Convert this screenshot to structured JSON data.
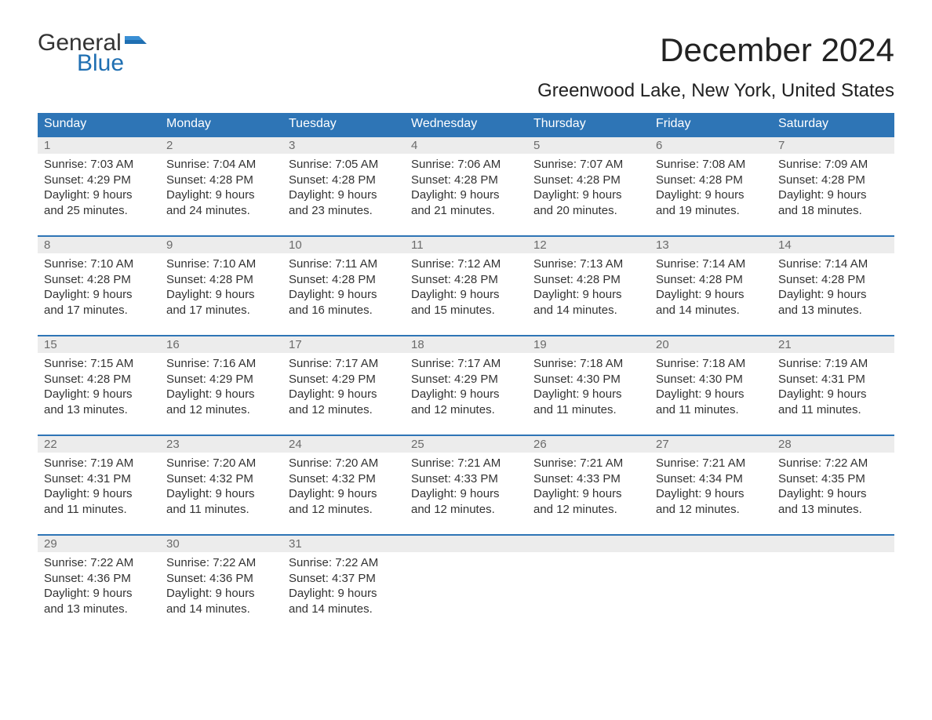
{
  "logo": {
    "word1": "General",
    "word2": "Blue"
  },
  "title": "December 2024",
  "subtitle": "Greenwood Lake, New York, United States",
  "colors": {
    "header_bg": "#2e75b6",
    "header_text": "#ffffff",
    "week_border": "#2e75b6",
    "daynum_bg": "#ececec",
    "daynum_text": "#6b6b6b",
    "body_text": "#333333",
    "logo_blue": "#1f6fb2",
    "background": "#ffffff"
  },
  "typography": {
    "title_size": 42,
    "subtitle_size": 24,
    "dow_size": 16,
    "cell_size": 15
  },
  "days_of_week": [
    "Sunday",
    "Monday",
    "Tuesday",
    "Wednesday",
    "Thursday",
    "Friday",
    "Saturday"
  ],
  "weeks": [
    [
      {
        "num": "1",
        "sunrise": "Sunrise: 7:03 AM",
        "sunset": "Sunset: 4:29 PM",
        "daylight": "Daylight: 9 hours and 25 minutes."
      },
      {
        "num": "2",
        "sunrise": "Sunrise: 7:04 AM",
        "sunset": "Sunset: 4:28 PM",
        "daylight": "Daylight: 9 hours and 24 minutes."
      },
      {
        "num": "3",
        "sunrise": "Sunrise: 7:05 AM",
        "sunset": "Sunset: 4:28 PM",
        "daylight": "Daylight: 9 hours and 23 minutes."
      },
      {
        "num": "4",
        "sunrise": "Sunrise: 7:06 AM",
        "sunset": "Sunset: 4:28 PM",
        "daylight": "Daylight: 9 hours and 21 minutes."
      },
      {
        "num": "5",
        "sunrise": "Sunrise: 7:07 AM",
        "sunset": "Sunset: 4:28 PM",
        "daylight": "Daylight: 9 hours and 20 minutes."
      },
      {
        "num": "6",
        "sunrise": "Sunrise: 7:08 AM",
        "sunset": "Sunset: 4:28 PM",
        "daylight": "Daylight: 9 hours and 19 minutes."
      },
      {
        "num": "7",
        "sunrise": "Sunrise: 7:09 AM",
        "sunset": "Sunset: 4:28 PM",
        "daylight": "Daylight: 9 hours and 18 minutes."
      }
    ],
    [
      {
        "num": "8",
        "sunrise": "Sunrise: 7:10 AM",
        "sunset": "Sunset: 4:28 PM",
        "daylight": "Daylight: 9 hours and 17 minutes."
      },
      {
        "num": "9",
        "sunrise": "Sunrise: 7:10 AM",
        "sunset": "Sunset: 4:28 PM",
        "daylight": "Daylight: 9 hours and 17 minutes."
      },
      {
        "num": "10",
        "sunrise": "Sunrise: 7:11 AM",
        "sunset": "Sunset: 4:28 PM",
        "daylight": "Daylight: 9 hours and 16 minutes."
      },
      {
        "num": "11",
        "sunrise": "Sunrise: 7:12 AM",
        "sunset": "Sunset: 4:28 PM",
        "daylight": "Daylight: 9 hours and 15 minutes."
      },
      {
        "num": "12",
        "sunrise": "Sunrise: 7:13 AM",
        "sunset": "Sunset: 4:28 PM",
        "daylight": "Daylight: 9 hours and 14 minutes."
      },
      {
        "num": "13",
        "sunrise": "Sunrise: 7:14 AM",
        "sunset": "Sunset: 4:28 PM",
        "daylight": "Daylight: 9 hours and 14 minutes."
      },
      {
        "num": "14",
        "sunrise": "Sunrise: 7:14 AM",
        "sunset": "Sunset: 4:28 PM",
        "daylight": "Daylight: 9 hours and 13 minutes."
      }
    ],
    [
      {
        "num": "15",
        "sunrise": "Sunrise: 7:15 AM",
        "sunset": "Sunset: 4:28 PM",
        "daylight": "Daylight: 9 hours and 13 minutes."
      },
      {
        "num": "16",
        "sunrise": "Sunrise: 7:16 AM",
        "sunset": "Sunset: 4:29 PM",
        "daylight": "Daylight: 9 hours and 12 minutes."
      },
      {
        "num": "17",
        "sunrise": "Sunrise: 7:17 AM",
        "sunset": "Sunset: 4:29 PM",
        "daylight": "Daylight: 9 hours and 12 minutes."
      },
      {
        "num": "18",
        "sunrise": "Sunrise: 7:17 AM",
        "sunset": "Sunset: 4:29 PM",
        "daylight": "Daylight: 9 hours and 12 minutes."
      },
      {
        "num": "19",
        "sunrise": "Sunrise: 7:18 AM",
        "sunset": "Sunset: 4:30 PM",
        "daylight": "Daylight: 9 hours and 11 minutes."
      },
      {
        "num": "20",
        "sunrise": "Sunrise: 7:18 AM",
        "sunset": "Sunset: 4:30 PM",
        "daylight": "Daylight: 9 hours and 11 minutes."
      },
      {
        "num": "21",
        "sunrise": "Sunrise: 7:19 AM",
        "sunset": "Sunset: 4:31 PM",
        "daylight": "Daylight: 9 hours and 11 minutes."
      }
    ],
    [
      {
        "num": "22",
        "sunrise": "Sunrise: 7:19 AM",
        "sunset": "Sunset: 4:31 PM",
        "daylight": "Daylight: 9 hours and 11 minutes."
      },
      {
        "num": "23",
        "sunrise": "Sunrise: 7:20 AM",
        "sunset": "Sunset: 4:32 PM",
        "daylight": "Daylight: 9 hours and 11 minutes."
      },
      {
        "num": "24",
        "sunrise": "Sunrise: 7:20 AM",
        "sunset": "Sunset: 4:32 PM",
        "daylight": "Daylight: 9 hours and 12 minutes."
      },
      {
        "num": "25",
        "sunrise": "Sunrise: 7:21 AM",
        "sunset": "Sunset: 4:33 PM",
        "daylight": "Daylight: 9 hours and 12 minutes."
      },
      {
        "num": "26",
        "sunrise": "Sunrise: 7:21 AM",
        "sunset": "Sunset: 4:33 PM",
        "daylight": "Daylight: 9 hours and 12 minutes."
      },
      {
        "num": "27",
        "sunrise": "Sunrise: 7:21 AM",
        "sunset": "Sunset: 4:34 PM",
        "daylight": "Daylight: 9 hours and 12 minutes."
      },
      {
        "num": "28",
        "sunrise": "Sunrise: 7:22 AM",
        "sunset": "Sunset: 4:35 PM",
        "daylight": "Daylight: 9 hours and 13 minutes."
      }
    ],
    [
      {
        "num": "29",
        "sunrise": "Sunrise: 7:22 AM",
        "sunset": "Sunset: 4:36 PM",
        "daylight": "Daylight: 9 hours and 13 minutes."
      },
      {
        "num": "30",
        "sunrise": "Sunrise: 7:22 AM",
        "sunset": "Sunset: 4:36 PM",
        "daylight": "Daylight: 9 hours and 14 minutes."
      },
      {
        "num": "31",
        "sunrise": "Sunrise: 7:22 AM",
        "sunset": "Sunset: 4:37 PM",
        "daylight": "Daylight: 9 hours and 14 minutes."
      },
      {
        "num": "",
        "sunrise": "",
        "sunset": "",
        "daylight": ""
      },
      {
        "num": "",
        "sunrise": "",
        "sunset": "",
        "daylight": ""
      },
      {
        "num": "",
        "sunrise": "",
        "sunset": "",
        "daylight": ""
      },
      {
        "num": "",
        "sunrise": "",
        "sunset": "",
        "daylight": ""
      }
    ]
  ]
}
